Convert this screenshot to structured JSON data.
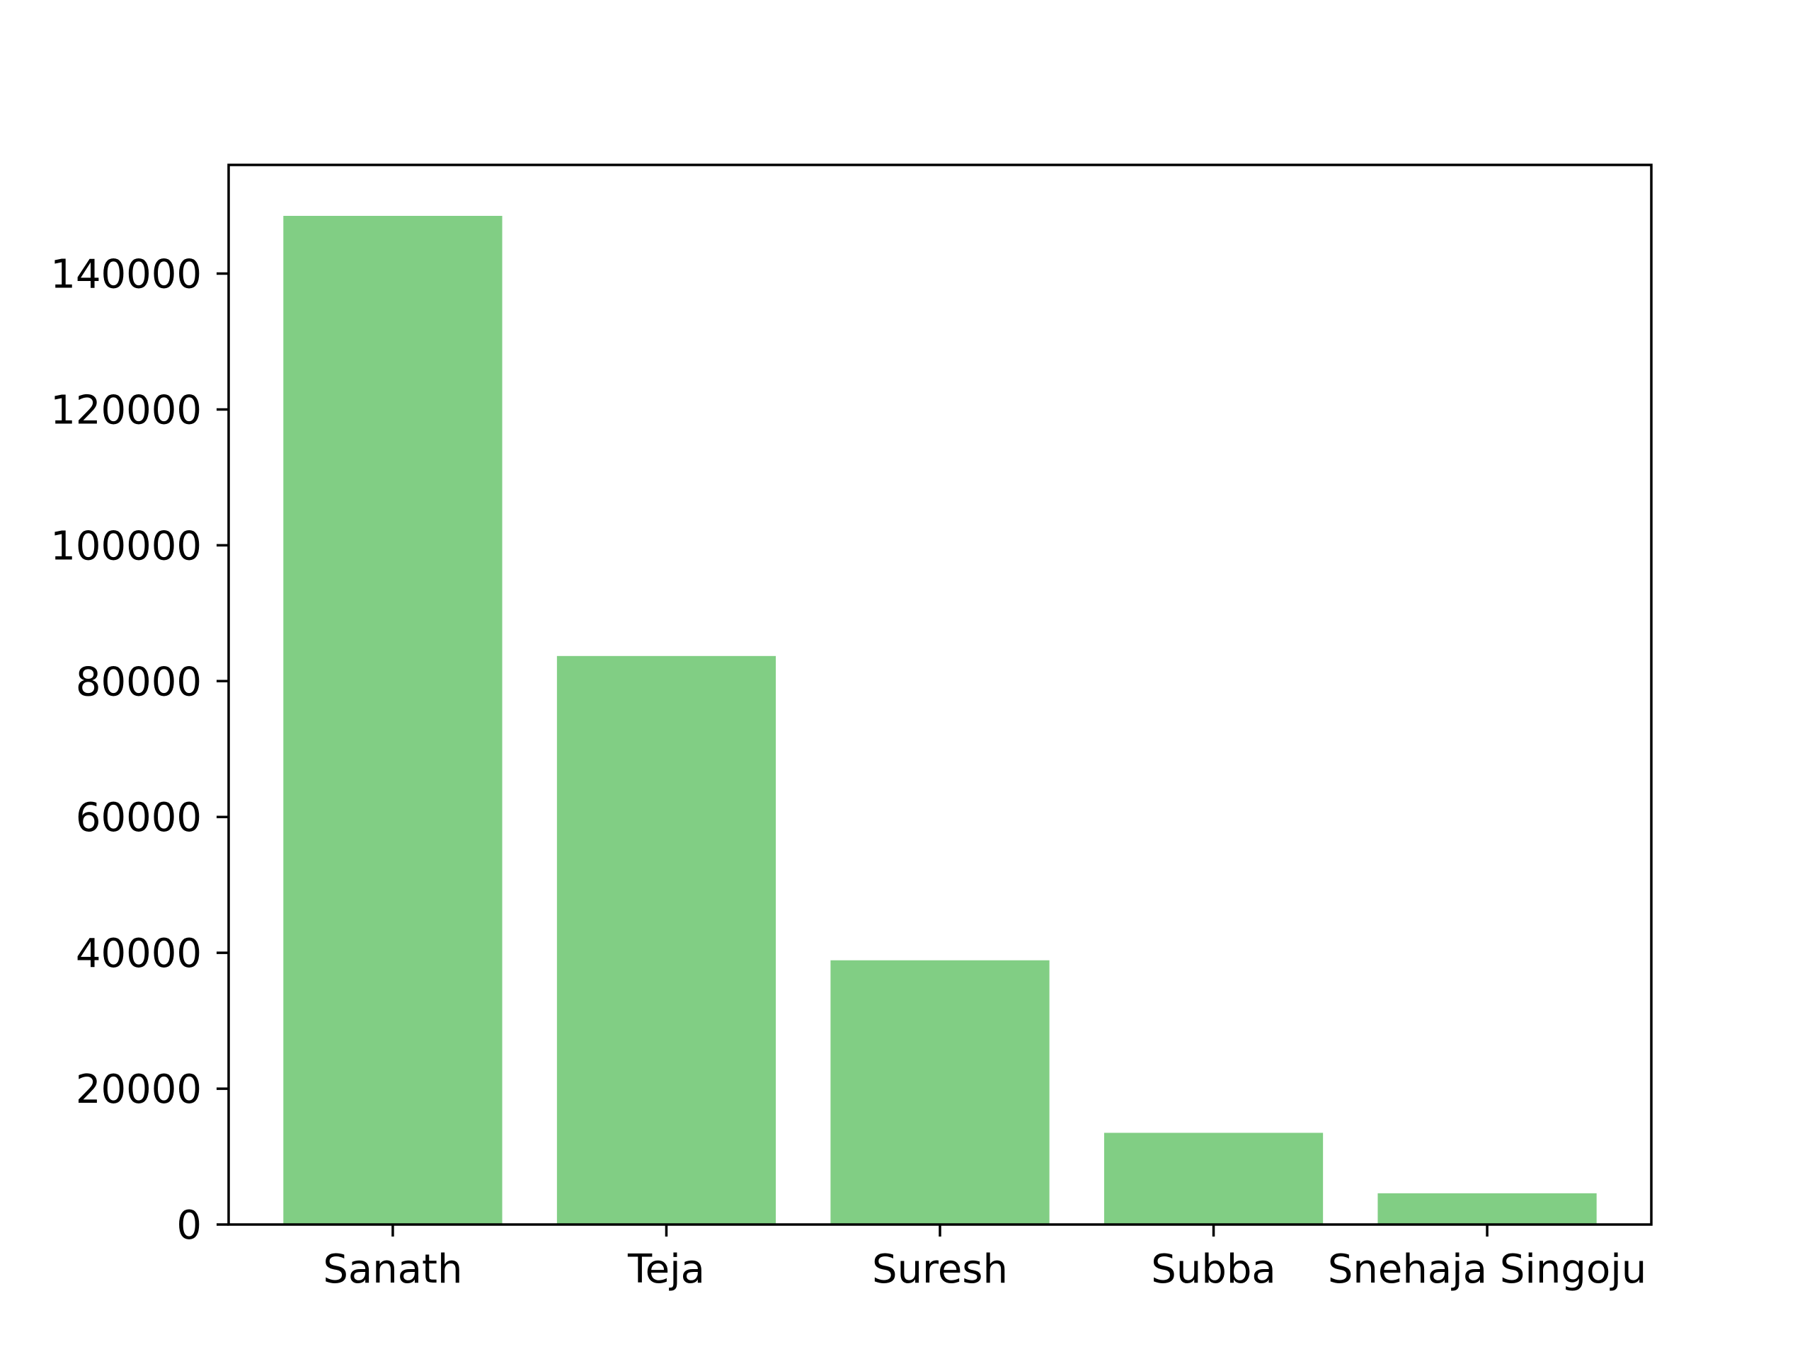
{
  "chart_data": {
    "type": "bar",
    "title": "",
    "xlabel": "",
    "ylabel": "",
    "categories": [
      "Sanath",
      "Teja",
      "Suresh",
      "Subba",
      "Snehaja Singoju"
    ],
    "values": [
      148500,
      83700,
      38900,
      13500,
      4600
    ],
    "ylim": [
      0,
      156000
    ],
    "yticks": [
      0,
      20000,
      40000,
      60000,
      80000,
      100000,
      120000,
      140000
    ],
    "ytick_labels": [
      "0",
      "20000",
      "40000",
      "60000",
      "80000",
      "100000",
      "120000",
      "140000"
    ],
    "grid": false,
    "legend": "none",
    "bar_color": "#81ce84",
    "axis_color": "#000000"
  }
}
